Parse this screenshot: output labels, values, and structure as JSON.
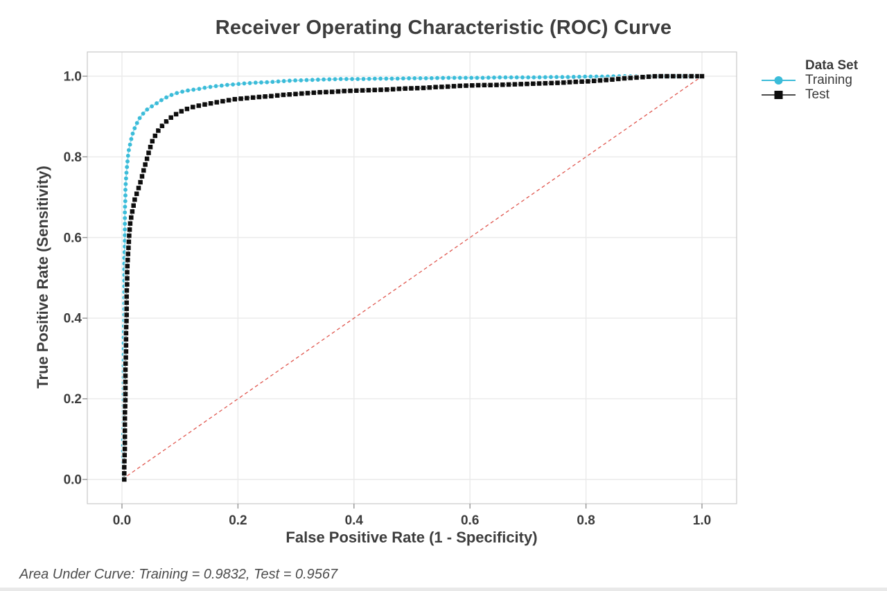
{
  "chart_data": {
    "type": "line",
    "title": "Receiver Operating Characteristic (ROC) Curve",
    "xlabel": "False Positive Rate (1 - Specificity)",
    "ylabel": "True Positive Rate (Sensitivity)",
    "xlim": [
      0.0,
      1.0
    ],
    "ylim": [
      0.0,
      1.0
    ],
    "x_ticks": [
      "0.0",
      "0.2",
      "0.4",
      "0.6",
      "0.8",
      "1.0"
    ],
    "y_ticks": [
      "0.0",
      "0.2",
      "0.4",
      "0.6",
      "0.8",
      "1.0"
    ],
    "grid": true,
    "legend_position": "right",
    "legend_title": "Data Set",
    "footnote": "Area Under Curve: Training = 0.9832, Test = 0.9567",
    "reference_line": {
      "name": "chance-diagonal",
      "from": [
        0,
        0
      ],
      "to": [
        1,
        1
      ],
      "color": "#e0574f",
      "style": "dashed"
    },
    "series": [
      {
        "name": "Training",
        "auc": 0.9832,
        "color": "#3bbcd9",
        "legend_line": "#3bbcd9",
        "marker": "circle",
        "points": [
          [
            0.002,
            0.0
          ],
          [
            0.002,
            0.05
          ],
          [
            0.002,
            0.1
          ],
          [
            0.003,
            0.15
          ],
          [
            0.003,
            0.2
          ],
          [
            0.003,
            0.25
          ],
          [
            0.003,
            0.3
          ],
          [
            0.003,
            0.35
          ],
          [
            0.004,
            0.4
          ],
          [
            0.004,
            0.45
          ],
          [
            0.004,
            0.5
          ],
          [
            0.004,
            0.55
          ],
          [
            0.005,
            0.58
          ],
          [
            0.005,
            0.61
          ],
          [
            0.005,
            0.64
          ],
          [
            0.005,
            0.67
          ],
          [
            0.006,
            0.7
          ],
          [
            0.006,
            0.72
          ],
          [
            0.007,
            0.745
          ],
          [
            0.008,
            0.765
          ],
          [
            0.009,
            0.78
          ],
          [
            0.01,
            0.795
          ],
          [
            0.011,
            0.81
          ],
          [
            0.013,
            0.825
          ],
          [
            0.015,
            0.838
          ],
          [
            0.017,
            0.85
          ],
          [
            0.019,
            0.86
          ],
          [
            0.021,
            0.868
          ],
          [
            0.024,
            0.878
          ],
          [
            0.027,
            0.887
          ],
          [
            0.03,
            0.895
          ],
          [
            0.034,
            0.903
          ],
          [
            0.038,
            0.91
          ],
          [
            0.042,
            0.916
          ],
          [
            0.047,
            0.921
          ],
          [
            0.052,
            0.926
          ],
          [
            0.058,
            0.931
          ],
          [
            0.065,
            0.938
          ],
          [
            0.072,
            0.944
          ],
          [
            0.08,
            0.95
          ],
          [
            0.088,
            0.955
          ],
          [
            0.096,
            0.959
          ],
          [
            0.105,
            0.962
          ],
          [
            0.115,
            0.965
          ],
          [
            0.125,
            0.967
          ],
          [
            0.135,
            0.969
          ],
          [
            0.145,
            0.972
          ],
          [
            0.155,
            0.974
          ],
          [
            0.165,
            0.976
          ],
          [
            0.175,
            0.977
          ],
          [
            0.185,
            0.979
          ],
          [
            0.195,
            0.98
          ],
          [
            0.21,
            0.982
          ],
          [
            0.23,
            0.984
          ],
          [
            0.25,
            0.985
          ],
          [
            0.27,
            0.987
          ],
          [
            0.29,
            0.989
          ],
          [
            0.31,
            0.99
          ],
          [
            0.33,
            0.991
          ],
          [
            0.35,
            0.992
          ],
          [
            0.38,
            0.993
          ],
          [
            0.41,
            0.993
          ],
          [
            0.44,
            0.994
          ],
          [
            0.47,
            0.994
          ],
          [
            0.5,
            0.995
          ],
          [
            0.53,
            0.995
          ],
          [
            0.56,
            0.996
          ],
          [
            0.59,
            0.996
          ],
          [
            0.62,
            0.996
          ],
          [
            0.65,
            0.997
          ],
          [
            0.68,
            0.997
          ],
          [
            0.71,
            0.997
          ],
          [
            0.74,
            0.998
          ],
          [
            0.77,
            0.998
          ],
          [
            0.8,
            0.999
          ],
          [
            0.83,
            0.999
          ],
          [
            0.86,
            1.0
          ],
          [
            0.89,
            1.0
          ],
          [
            1.0,
            1.0
          ]
        ]
      },
      {
        "name": "Test",
        "auc": 0.9567,
        "color": "#0d0d0d",
        "legend_line": "#4a4a4a",
        "marker": "square",
        "points": [
          [
            0.004,
            0.0
          ],
          [
            0.004,
            0.04
          ],
          [
            0.005,
            0.08
          ],
          [
            0.005,
            0.12
          ],
          [
            0.005,
            0.16
          ],
          [
            0.006,
            0.2
          ],
          [
            0.006,
            0.24
          ],
          [
            0.006,
            0.28
          ],
          [
            0.007,
            0.31
          ],
          [
            0.007,
            0.34
          ],
          [
            0.007,
            0.37
          ],
          [
            0.008,
            0.4
          ],
          [
            0.008,
            0.43
          ],
          [
            0.008,
            0.46
          ],
          [
            0.009,
            0.49
          ],
          [
            0.009,
            0.52
          ],
          [
            0.01,
            0.545
          ],
          [
            0.011,
            0.57
          ],
          [
            0.012,
            0.595
          ],
          [
            0.013,
            0.615
          ],
          [
            0.014,
            0.633
          ],
          [
            0.016,
            0.65
          ],
          [
            0.018,
            0.666
          ],
          [
            0.02,
            0.68
          ],
          [
            0.022,
            0.694
          ],
          [
            0.025,
            0.707
          ],
          [
            0.028,
            0.72
          ],
          [
            0.031,
            0.733
          ],
          [
            0.034,
            0.748
          ],
          [
            0.037,
            0.764
          ],
          [
            0.04,
            0.78
          ],
          [
            0.044,
            0.8
          ],
          [
            0.048,
            0.82
          ],
          [
            0.052,
            0.838
          ],
          [
            0.057,
            0.852
          ],
          [
            0.062,
            0.864
          ],
          [
            0.068,
            0.875
          ],
          [
            0.075,
            0.886
          ],
          [
            0.082,
            0.895
          ],
          [
            0.09,
            0.903
          ],
          [
            0.098,
            0.91
          ],
          [
            0.107,
            0.916
          ],
          [
            0.116,
            0.921
          ],
          [
            0.126,
            0.925
          ],
          [
            0.136,
            0.928
          ],
          [
            0.147,
            0.931
          ],
          [
            0.158,
            0.934
          ],
          [
            0.17,
            0.937
          ],
          [
            0.182,
            0.94
          ],
          [
            0.195,
            0.943
          ],
          [
            0.21,
            0.945
          ],
          [
            0.225,
            0.947
          ],
          [
            0.24,
            0.949
          ],
          [
            0.26,
            0.951
          ],
          [
            0.28,
            0.954
          ],
          [
            0.3,
            0.956
          ],
          [
            0.32,
            0.958
          ],
          [
            0.34,
            0.96
          ],
          [
            0.36,
            0.961
          ],
          [
            0.38,
            0.963
          ],
          [
            0.4,
            0.964
          ],
          [
            0.42,
            0.965
          ],
          [
            0.44,
            0.966
          ],
          [
            0.46,
            0.967
          ],
          [
            0.48,
            0.969
          ],
          [
            0.5,
            0.97
          ],
          [
            0.52,
            0.971
          ],
          [
            0.54,
            0.973
          ],
          [
            0.56,
            0.974
          ],
          [
            0.58,
            0.976
          ],
          [
            0.6,
            0.977
          ],
          [
            0.62,
            0.978
          ],
          [
            0.64,
            0.978
          ],
          [
            0.66,
            0.979
          ],
          [
            0.68,
            0.98
          ],
          [
            0.7,
            0.981
          ],
          [
            0.72,
            0.982
          ],
          [
            0.74,
            0.983
          ],
          [
            0.76,
            0.984
          ],
          [
            0.78,
            0.986
          ],
          [
            0.8,
            0.987
          ],
          [
            0.82,
            0.989
          ],
          [
            0.84,
            0.991
          ],
          [
            0.86,
            0.994
          ],
          [
            0.88,
            0.996
          ],
          [
            0.9,
            0.998
          ],
          [
            0.92,
            1.0
          ],
          [
            0.96,
            1.0
          ],
          [
            1.0,
            1.0
          ]
        ]
      }
    ]
  }
}
